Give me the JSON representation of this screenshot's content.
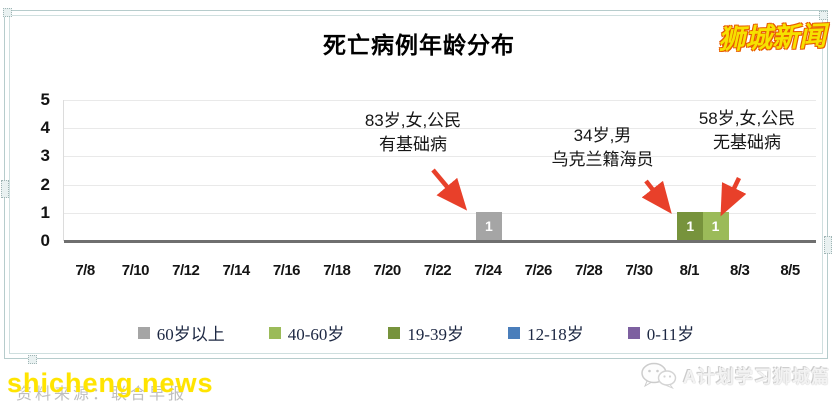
{
  "logo": "狮城新闻",
  "chart_data": {
    "type": "bar",
    "title": "死亡病例年龄分布",
    "xlabel": "",
    "ylabel": "",
    "ylim": [
      0,
      5
    ],
    "yticks": [
      0,
      1,
      2,
      3,
      4,
      5
    ],
    "grid": "horizontal",
    "x_tick_labels": [
      "7/8",
      "7/10",
      "7/12",
      "7/14",
      "7/16",
      "7/18",
      "7/20",
      "7/22",
      "7/24",
      "7/26",
      "7/28",
      "7/30",
      "8/1",
      "8/3",
      "8/5"
    ],
    "bars": [
      {
        "date": "7/24",
        "offset": 16,
        "value": 1,
        "label": "1",
        "category": "60岁以上",
        "color": "#a5a5a5"
      },
      {
        "date": "8/1",
        "offset": 24,
        "value": 1,
        "label": "1",
        "category": "19-39岁",
        "color": "#77933c"
      },
      {
        "date": "8/2",
        "offset": 25,
        "value": 1,
        "label": "1",
        "category": "40-60岁",
        "color": "#9bbb59"
      }
    ],
    "legend_position": "bottom",
    "legend": [
      {
        "label": "60岁以上",
        "color": "#a5a5a5"
      },
      {
        "label": "40-60岁",
        "color": "#9bbb59"
      },
      {
        "label": "19-39岁",
        "color": "#77933c"
      },
      {
        "label": "12-18岁",
        "color": "#4a7ebb"
      },
      {
        "label": "0-11岁",
        "color": "#7d60a0"
      }
    ],
    "annotations": [
      {
        "lines": [
          "83岁,女,公民",
          "有基础病"
        ],
        "target_date": "7/24"
      },
      {
        "lines": [
          "34岁,男",
          "乌克兰籍海员"
        ],
        "target_date": "8/1"
      },
      {
        "lines": [
          "58岁,女,公民",
          "无基础病"
        ],
        "target_date": "8/2"
      }
    ],
    "annotation_arrow_color": "#e8402a"
  },
  "watermarks": {
    "source_text": "资料来源：联合早报",
    "site": "shicheng.news",
    "wechat_name": "A计划学习狮城篇"
  }
}
